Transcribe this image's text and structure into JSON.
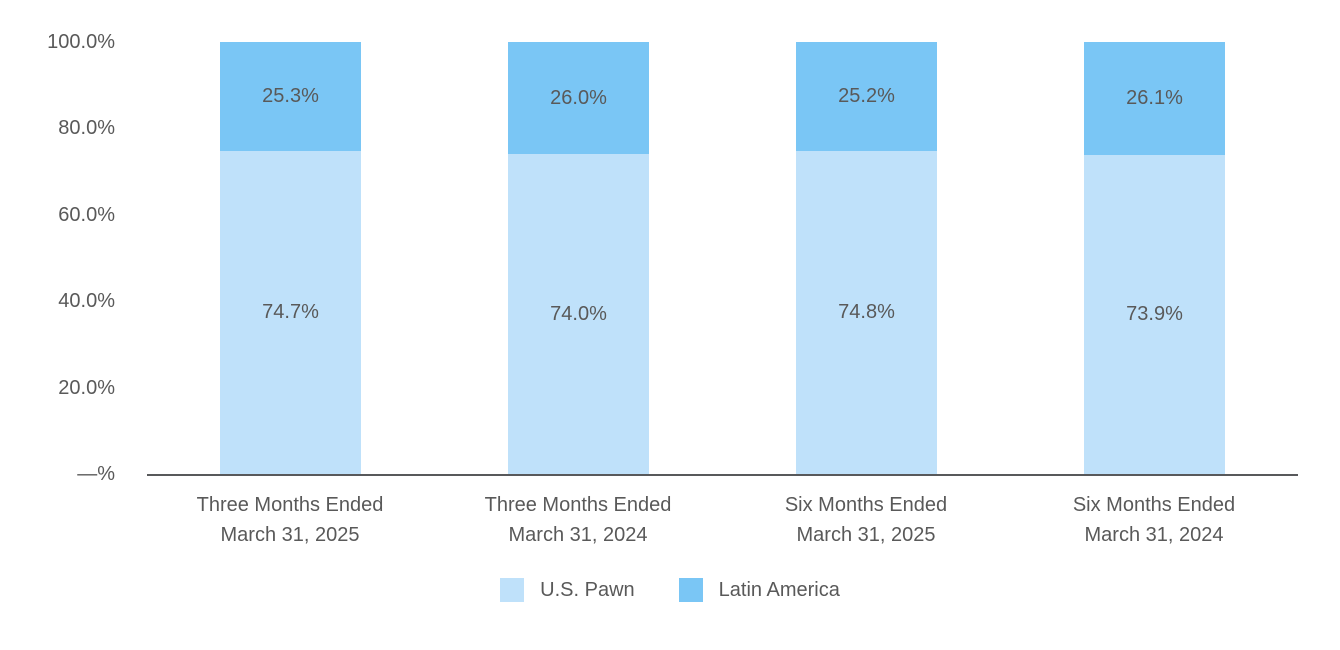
{
  "chart_data": {
    "type": "bar",
    "stacked": true,
    "orientation": "vertical",
    "title": "",
    "xlabel": "",
    "ylabel": "",
    "grid": false,
    "categories": [
      [
        "Three Months Ended",
        "March 31, 2025"
      ],
      [
        "Three Months Ended",
        "March 31, 2024"
      ],
      [
        "Six Months Ended",
        "March 31, 2025"
      ],
      [
        "Six Months Ended",
        "March 31, 2024"
      ]
    ],
    "series": [
      {
        "name": "U.S. Pawn",
        "slug": "us-pawn",
        "color": "#BFE1FA",
        "values": [
          74.7,
          74.0,
          74.8,
          73.9
        ],
        "labels": [
          "74.7%",
          "74.0%",
          "74.8%",
          "73.9%"
        ]
      },
      {
        "name": "Latin America",
        "slug": "latin-america",
        "color": "#7AC6F5",
        "values": [
          25.3,
          26.0,
          25.2,
          26.1
        ],
        "labels": [
          "25.3%",
          "26.0%",
          "25.2%",
          "26.1%"
        ]
      }
    ],
    "y_axis": {
      "range": [
        0,
        100
      ],
      "ticks": [
        {
          "value": 0,
          "label": "—%"
        },
        {
          "value": 20,
          "label": "20.0%"
        },
        {
          "value": 40,
          "label": "40.0%"
        },
        {
          "value": 60,
          "label": "60.0%"
        },
        {
          "value": 80,
          "label": "80.0%"
        },
        {
          "value": 100,
          "label": "100.0%"
        }
      ]
    },
    "legend": {
      "position": "bottom",
      "entries": [
        {
          "label": "U.S. Pawn",
          "color": "#BFE1FA"
        },
        {
          "label": "Latin America",
          "color": "#7AC6F5"
        }
      ]
    },
    "label_color": "#595959",
    "axis_line_color": "#58595B"
  }
}
